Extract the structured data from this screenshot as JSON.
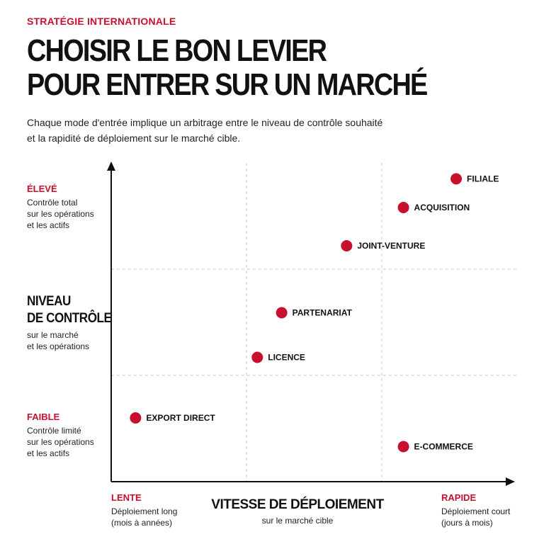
{
  "header": {
    "kicker": "STRATÉGIE INTERNATIONALE",
    "title_line1": "CHOISIR LE BON LEVIER",
    "title_line2": "POUR ENTRER SUR UN MARCHÉ",
    "subtitle_line1": "Chaque mode d'entrée implique un arbitrage entre le niveau de contrôle souhaité",
    "subtitle_line2": "et la rapidité de déploiement sur le marché cible."
  },
  "y_axis": {
    "title_line1": "NIVEAU",
    "title_line2": "DE CONTRÔLE",
    "sub_line1": "sur le marché",
    "sub_line2": "et les opérations",
    "high": {
      "title": "ÉLEVÉ",
      "desc_line1": "Contrôle total",
      "desc_line2": "sur les opérations",
      "desc_line3": "et les actifs"
    },
    "low": {
      "title": "FAIBLE",
      "desc_line1": "Contrôle limité",
      "desc_line2": "sur les opérations",
      "desc_line3": "et les actifs"
    }
  },
  "x_axis": {
    "title": "VITESSE DE DÉPLOIEMENT",
    "sub": "sur le marché cible",
    "low": {
      "title": "LENTE",
      "desc_line1": "Déploiement long",
      "desc_line2": "(mois à années)"
    },
    "high": {
      "title": "RAPIDE",
      "desc_line1": "Déploiement court",
      "desc_line2": "(jours à mois)"
    }
  },
  "colors": {
    "accent": "#c8102e",
    "text": "#111111",
    "grid": "#c8c8c8"
  },
  "chart_data": {
    "type": "scatter",
    "xlim": [
      0,
      100
    ],
    "ylim": [
      0,
      100
    ],
    "grid": "dashed thirds",
    "points": [
      {
        "label": "FILIALE",
        "x": 85,
        "y": 95
      },
      {
        "label": "ACQUISITION",
        "x": 72,
        "y": 86
      },
      {
        "label": "JOINT-VENTURE",
        "x": 58,
        "y": 74
      },
      {
        "label": "PARTENARIAT",
        "x": 42,
        "y": 53
      },
      {
        "label": "LICENCE",
        "x": 36,
        "y": 39
      },
      {
        "label": "EXPORT DIRECT",
        "x": 6,
        "y": 20
      },
      {
        "label": "E-COMMERCE",
        "x": 72,
        "y": 11
      }
    ]
  }
}
